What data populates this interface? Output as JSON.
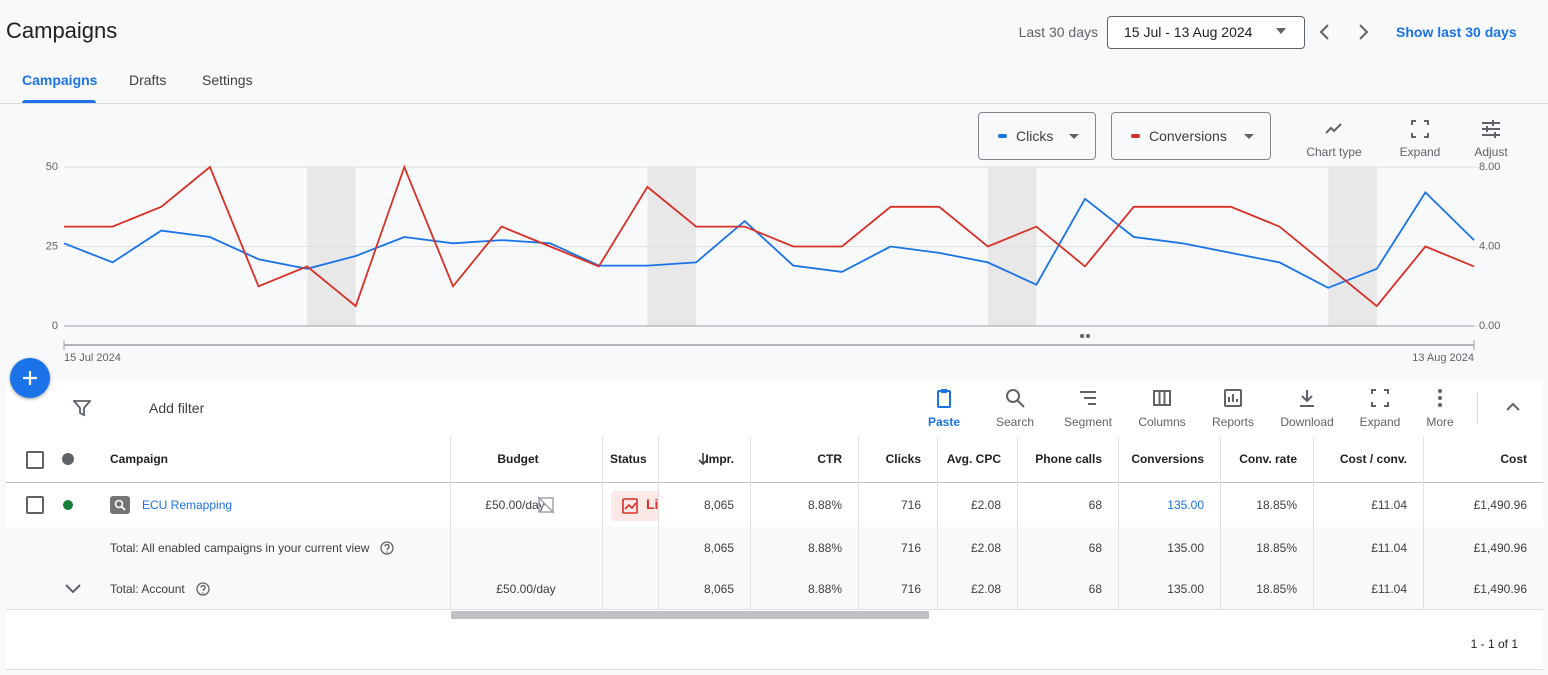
{
  "header": {
    "title": "Campaigns",
    "tabs": [
      "Campaigns",
      "Drafts",
      "Settings"
    ],
    "active_tab": 0,
    "range_label": "Last 30 days",
    "date_range": "15 Jul - 13 Aug 2024",
    "show_last": "Show last 30 days"
  },
  "chart_tools": [
    "Chart type",
    "Expand",
    "Adjust"
  ],
  "chart_data": {
    "type": "line",
    "categories": [
      "15 Jul 2024",
      null,
      null,
      null,
      null,
      null,
      null,
      null,
      null,
      null,
      null,
      null,
      null,
      null,
      null,
      null,
      null,
      null,
      null,
      null,
      null,
      null,
      null,
      null,
      null,
      null,
      null,
      null,
      null,
      "13 Aug 2024"
    ],
    "series": [
      {
        "name": "Clicks",
        "color": "#1a73e8",
        "values": [
          26,
          20,
          30,
          28,
          21,
          18,
          22,
          28,
          26,
          27,
          26,
          19,
          19,
          20,
          33,
          19,
          17,
          25,
          23,
          20,
          13,
          40,
          28,
          26,
          23,
          20,
          12,
          18,
          42,
          27
        ]
      },
      {
        "name": "Conversions",
        "color": "#d93025",
        "axis": "y2",
        "values": [
          5,
          5,
          6,
          8,
          2,
          3,
          1,
          8,
          2,
          5,
          4,
          3,
          7,
          5,
          5,
          4,
          4,
          6,
          6,
          4,
          5,
          3,
          6,
          6,
          6,
          5,
          3,
          1,
          4,
          3
        ]
      }
    ],
    "ylim": [
      0,
      50
    ],
    "yticks": [
      0,
      25,
      50
    ],
    "y2lim": [
      0,
      8
    ],
    "y2ticks": [
      {
        "value": 0,
        "label": "0.00"
      },
      {
        "value": 4,
        "label": "4.00"
      },
      {
        "value": 8,
        "label": "8.00"
      }
    ],
    "grid": true
  },
  "toolbar": {
    "filter": "Add filter",
    "buttons": [
      "Paste",
      "Search",
      "Segment",
      "Columns",
      "Reports",
      "Download",
      "Expand",
      "More"
    ]
  },
  "table": {
    "columns": [
      "Campaign",
      "Budget",
      "Status",
      "Impr.",
      "CTR",
      "Clicks",
      "Avg. CPC",
      "Phone calls",
      "Conversions",
      "Conv. rate",
      "Cost / conv.",
      "Cost"
    ],
    "rows": [
      {
        "campaign": "ECU Remapping",
        "budget": "£50.00/day",
        "status": "Li",
        "values": [
          "8,065",
          "8.88%",
          "716",
          "£2.08",
          "68",
          "135.00",
          "18.85%",
          "£11.04",
          "£1,490.96"
        ]
      },
      {
        "campaign": "Total: All enabled campaigns in your current view",
        "values": [
          "8,065",
          "8.88%",
          "716",
          "£2.08",
          "68",
          "135.00",
          "18.85%",
          "£11.04",
          "£1,490.96"
        ]
      },
      {
        "campaign": "Total: Account",
        "budget": "£50.00/day",
        "values": [
          "8,065",
          "8.88%",
          "716",
          "£2.08",
          "68",
          "135.00",
          "18.85%",
          "£11.04",
          "£1,490.96"
        ]
      }
    ]
  },
  "pagination": "1 - 1 of 1"
}
